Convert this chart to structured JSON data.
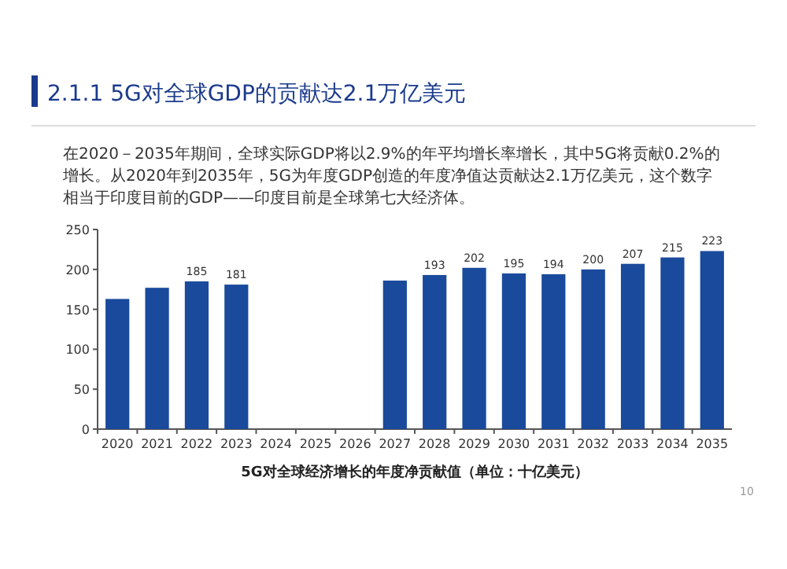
{
  "chart_data": {
    "type": "bar",
    "title": "2.1.1 5G对全球GDP的贡献达2.1万亿美元",
    "subtitle": "在2020－2035年期间，全球实际GDP将以2.9%的年平均增长率增长，其中5G将贡献0.2%的增长。从2020年到2035年，5G为年度GDP创造的年度净值达贡献达2.1万亿美元，这个数字相当于印度目前的GDP——印度目前是全球第七大经济体。",
    "xlabel": "5G对全球经济增长的年度净贡献值（单位：十亿美元）",
    "annotations": [
      "10"
    ],
    "categories": [
      "2020",
      "2021",
      "2022",
      "2023",
      "2024",
      "2025",
      "2026",
      "2027",
      "2028",
      "2029",
      "2030",
      "2031",
      "2032",
      "2033",
      "2034",
      "2035"
    ],
    "values": [
      163,
      177,
      185,
      181,
      null,
      null,
      null,
      186,
      193,
      202,
      195,
      194,
      200,
      207,
      215,
      223
    ],
    "value_labels": [
      null,
      null,
      "185",
      "181",
      null,
      null,
      null,
      null,
      "193",
      "202",
      "195",
      "194",
      "200",
      "207",
      "215",
      "223"
    ],
    "color": "#1a4a9c",
    "ylim": [
      0,
      250
    ],
    "yticks": [
      0,
      50,
      100,
      150,
      200,
      250
    ]
  }
}
